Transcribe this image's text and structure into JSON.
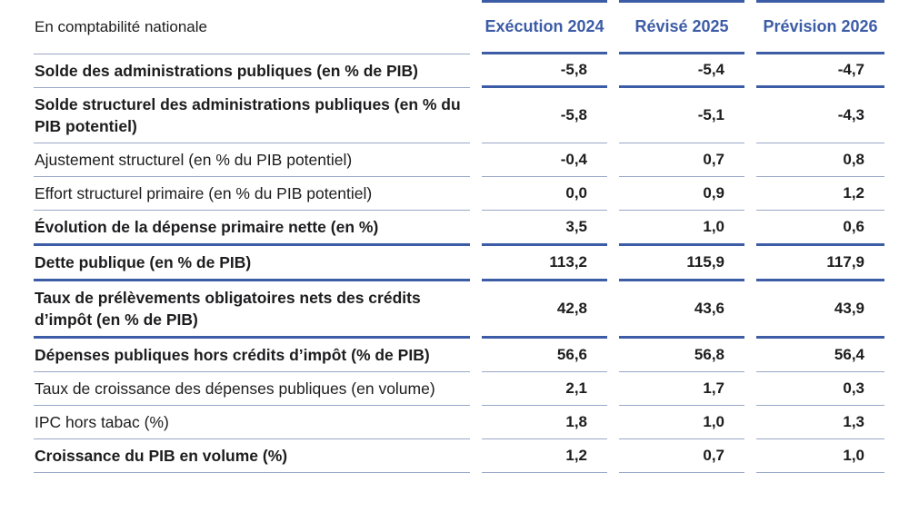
{
  "colors": {
    "accent_blue": "#3d5ca6",
    "thin_line": "#9aa7c7",
    "text_dark": "#1d1d1f",
    "background": "#ffffff"
  },
  "chart_data": {
    "type": "table",
    "title": "",
    "corner_label": "En comptabilité nationale",
    "columns": [
      "Exécution 2024",
      "Révisé 2025",
      "Prévision 2026"
    ],
    "rows": [
      {
        "label": "Solde des administrations publiques (en % de PIB)",
        "values": [
          "-5,8",
          "-5,4",
          "-4,7"
        ],
        "label_bold": true,
        "label_line": "thin",
        "value_line": "thick"
      },
      {
        "label": "Solde structurel des administrations publiques (en % du PIB potentiel)",
        "values": [
          "-5,8",
          "-5,1",
          "-4,3"
        ],
        "label_bold": true,
        "label_line": "thin",
        "value_line": "thin"
      },
      {
        "label": "Ajustement structurel (en % du PIB potentiel)",
        "values": [
          "-0,4",
          "0,7",
          "0,8"
        ],
        "label_bold": false,
        "label_line": "thin",
        "value_line": "thin"
      },
      {
        "label": "Effort structurel primaire (en % du PIB potentiel)",
        "values": [
          "0,0",
          "0,9",
          "1,2"
        ],
        "label_bold": false,
        "label_line": "thin",
        "value_line": "thin"
      },
      {
        "label": "Évolution de la dépense primaire nette (en %)",
        "values": [
          "3,5",
          "1,0",
          "0,6"
        ],
        "label_bold": true,
        "label_line": "thick",
        "value_line": "thick"
      },
      {
        "label": "Dette publique (en % de PIB)",
        "values": [
          "113,2",
          "115,9",
          "117,9"
        ],
        "label_bold": true,
        "label_line": "thick",
        "value_line": "thick"
      },
      {
        "label": "Taux de prélèvements obligatoires nets des crédits d’impôt (en % de PIB)",
        "values": [
          "42,8",
          "43,6",
          "43,9"
        ],
        "label_bold": true,
        "label_line": "thick",
        "value_line": "thick"
      },
      {
        "label": "Dépenses publiques hors crédits d’impôt (% de PIB)",
        "values": [
          "56,6",
          "56,8",
          "56,4"
        ],
        "label_bold": true,
        "label_line": "thin",
        "value_line": "thin"
      },
      {
        "label": "Taux de croissance des dépenses publiques (en volume)",
        "values": [
          "2,1",
          "1,7",
          "0,3"
        ],
        "label_bold": false,
        "label_line": "thin",
        "value_line": "thin"
      },
      {
        "label": "IPC hors tabac (%)",
        "values": [
          "1,8",
          "1,0",
          "1,3"
        ],
        "label_bold": false,
        "label_line": "thin",
        "value_line": "thin"
      },
      {
        "label": "Croissance du PIB en volume (%)",
        "values": [
          "1,2",
          "0,7",
          "1,0"
        ],
        "label_bold": true,
        "label_line": "thin",
        "value_line": "thin"
      }
    ]
  }
}
